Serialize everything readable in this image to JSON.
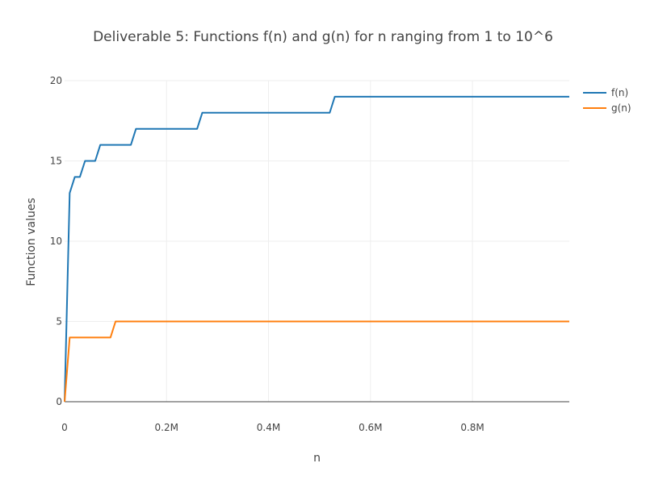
{
  "chart_data": {
    "type": "line",
    "title": "Deliverable 5: Functions f(n) and g(n) for n ranging from 1 to 10^6",
    "xlabel": "n",
    "ylabel": "Function values",
    "xlim": [
      0,
      990000
    ],
    "ylim": [
      0,
      20
    ],
    "x_ticks": [
      0,
      200000,
      400000,
      600000,
      800000
    ],
    "x_tick_labels": [
      "0",
      "0.2M",
      "0.4M",
      "0.6M",
      "0.8M"
    ],
    "y_ticks": [
      0,
      5,
      10,
      15,
      20
    ],
    "y_tick_labels": [
      "0",
      "5",
      "10",
      "15",
      "20"
    ],
    "grid": true,
    "legend_position": "top-right",
    "series": [
      {
        "name": "f(n)",
        "color": "#1f77b4",
        "x": [
          1,
          10000,
          20000,
          30000,
          40000,
          60000,
          70000,
          130000,
          140000,
          260000,
          270000,
          520000,
          530000,
          990000
        ],
        "y": [
          0,
          13,
          14,
          14,
          15,
          15,
          16,
          16,
          17,
          17,
          18,
          18,
          19,
          19
        ]
      },
      {
        "name": "g(n)",
        "color": "#ff7f0e",
        "x": [
          1,
          10000,
          90000,
          100000,
          990000
        ],
        "y": [
          0,
          4,
          4,
          5,
          5
        ]
      }
    ]
  }
}
